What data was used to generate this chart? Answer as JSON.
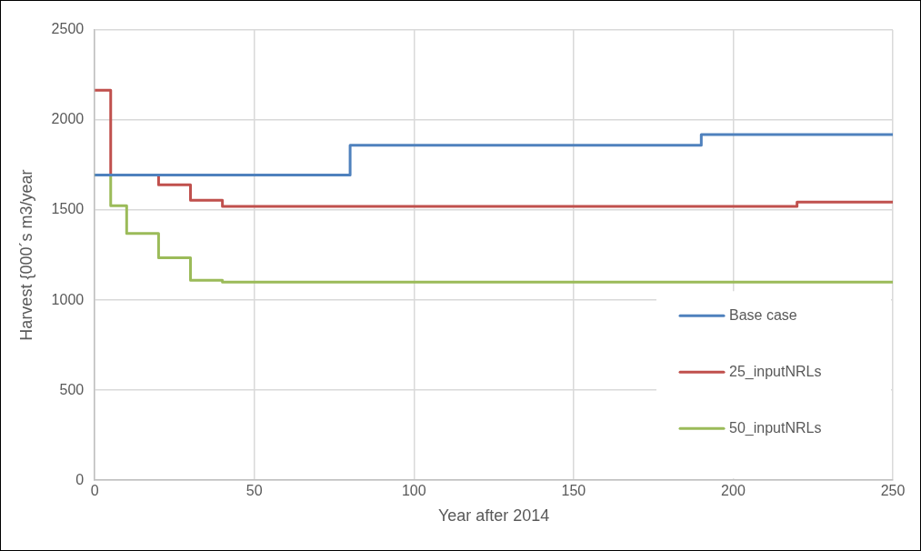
{
  "chart_data": {
    "type": "step",
    "xlabel": "Year after 2014",
    "ylabel": "Harvest {000´s m3/year",
    "xlim": [
      0,
      250
    ],
    "xticks": [
      0,
      50,
      100,
      150,
      200,
      250
    ],
    "ylim": [
      0,
      2500
    ],
    "yticks": [
      0,
      500,
      1000,
      1500,
      2000,
      2500
    ],
    "grid": true,
    "legend": "bottom right",
    "line_style": "solid",
    "marker": "none",
    "series": [
      {
        "name": "Base case",
        "color": "#4f81bd",
        "x": [
          0,
          80,
          190,
          250
        ],
        "values": [
          1695,
          1860,
          1920,
          1920
        ]
      },
      {
        "name": "25_inputNRLs",
        "color": "#c0504d",
        "x": [
          0,
          5,
          20,
          30,
          40,
          220,
          250
        ],
        "values": [
          2165,
          1695,
          1640,
          1555,
          1520,
          1545,
          1545
        ]
      },
      {
        "name": "50_inputNRLs",
        "color": "#9bbb59",
        "x": [
          0,
          5,
          10,
          20,
          30,
          40,
          250
        ],
        "values": [
          1695,
          1525,
          1370,
          1235,
          1110,
          1100,
          1100
        ]
      }
    ]
  }
}
